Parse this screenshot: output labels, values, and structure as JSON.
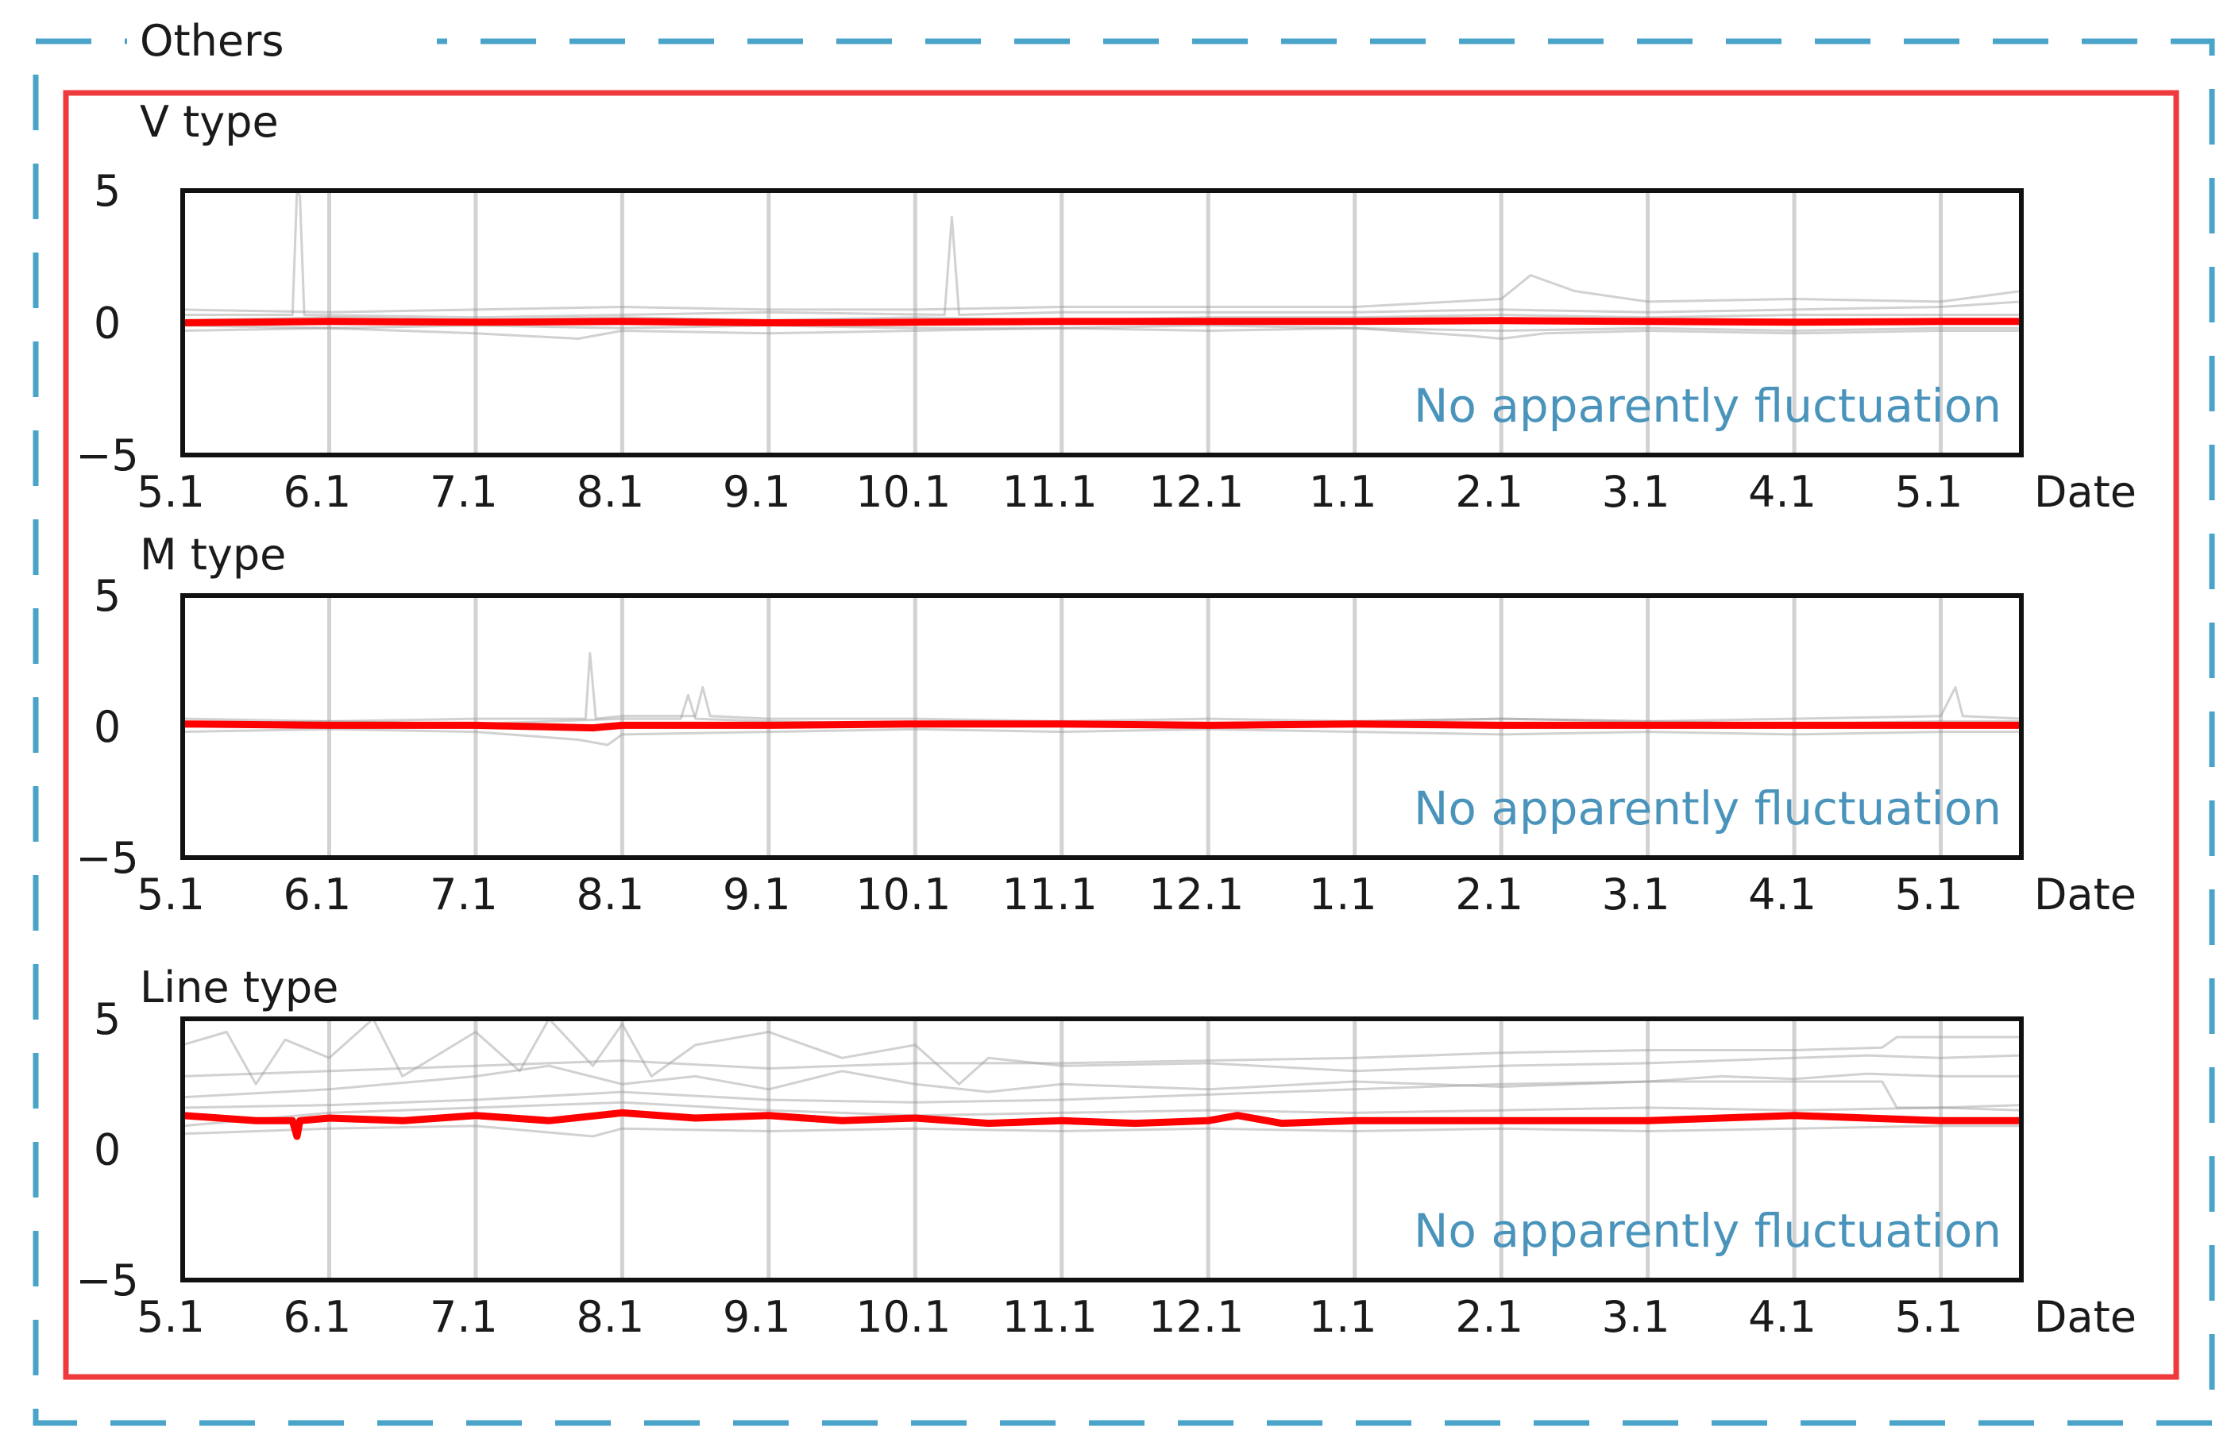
{
  "group_title": "Others",
  "colors": {
    "outer_frame": "#4aa3c8",
    "inner_frame": "#ee3a3c",
    "highlight_series": "#ff0000",
    "background_series": "#9a9a9a",
    "annotation": "#4a94bc",
    "grid": "#d2d2d2"
  },
  "chart_data": [
    {
      "type": "line",
      "title": "V type",
      "xlabel": "Date",
      "x_ticks": [
        "5.1",
        "6.1",
        "7.1",
        "8.1",
        "9.1",
        "10.1",
        "11.1",
        "12.1",
        "1.1",
        "2.1",
        "3.1",
        "4.1",
        "5.1"
      ],
      "x_range": [
        0,
        12.55
      ],
      "y_ticks": [
        5,
        0,
        -5
      ],
      "y_ticks_label": [
        "5",
        "0",
        "−5"
      ],
      "ylim": [
        -5,
        5
      ],
      "grid": "vertical",
      "annotation": "No apparently fluctuation",
      "highlight_series": {
        "x": [
          0,
          1,
          2,
          3,
          4,
          5,
          6,
          7,
          8,
          9,
          10,
          11,
          12,
          12.55
        ],
        "y": [
          0,
          0.05,
          0.02,
          0.05,
          0,
          0.02,
          0.05,
          0.05,
          0.05,
          0.08,
          0.05,
          0.02,
          0.05,
          0.05
        ]
      },
      "background_series": [
        {
          "x": [
            0,
            0.75,
            0.78,
            0.8,
            0.83,
            2,
            3,
            4,
            5.2,
            5.25,
            5.3,
            6,
            7,
            8,
            9,
            10,
            11,
            12,
            12.55
          ],
          "y": [
            0.3,
            0.3,
            5,
            4.8,
            0.3,
            0.2,
            0.3,
            0.4,
            0.3,
            4,
            0.3,
            0.4,
            0.4,
            0.4,
            0.5,
            0.4,
            0.5,
            0.6,
            0.8
          ]
        },
        {
          "x": [
            0,
            1,
            2,
            2.7,
            3,
            4,
            5,
            6,
            7,
            8,
            8.8,
            9,
            9.3,
            10,
            11,
            12,
            12.55
          ],
          "y": [
            -0.3,
            -0.2,
            -0.4,
            -0.6,
            -0.3,
            -0.4,
            -0.3,
            -0.2,
            -0.3,
            -0.2,
            -0.5,
            -0.6,
            -0.4,
            -0.3,
            -0.4,
            -0.3,
            -0.3
          ]
        },
        {
          "x": [
            0,
            1,
            2,
            3,
            4,
            5,
            6,
            7,
            8,
            9,
            9.2,
            9.5,
            10,
            11,
            12,
            12.55
          ],
          "y": [
            0.5,
            0.4,
            0.5,
            0.6,
            0.5,
            0.5,
            0.6,
            0.6,
            0.6,
            0.9,
            1.8,
            1.2,
            0.8,
            0.9,
            0.8,
            1.2
          ]
        },
        {
          "x": [
            0,
            1,
            2,
            3,
            4,
            5,
            6,
            7,
            8,
            9,
            10,
            11,
            12,
            12.55
          ],
          "y": [
            0.1,
            0.2,
            0.1,
            0.2,
            0.1,
            0.2,
            0.1,
            0.2,
            0.2,
            0.3,
            0.2,
            0.3,
            0.3,
            0.3
          ]
        },
        {
          "x": [
            0,
            1,
            2,
            3,
            4,
            5,
            6,
            7,
            8,
            9,
            10,
            11,
            12,
            12.55
          ],
          "y": [
            -0.1,
            -0.2,
            -0.1,
            -0.2,
            -0.1,
            -0.2,
            -0.2,
            -0.1,
            -0.2,
            -0.3,
            -0.2,
            -0.3,
            -0.2,
            -0.2
          ]
        }
      ]
    },
    {
      "type": "line",
      "title": "M type",
      "xlabel": "Date",
      "x_ticks": [
        "5.1",
        "6.1",
        "7.1",
        "8.1",
        "9.1",
        "10.1",
        "11.1",
        "12.1",
        "1.1",
        "2.1",
        "3.1",
        "4.1",
        "5.1"
      ],
      "x_range": [
        0,
        12.55
      ],
      "y_ticks": [
        5,
        0,
        -5
      ],
      "y_ticks_label": [
        "5",
        "0",
        "−5"
      ],
      "ylim": [
        -5,
        5
      ],
      "grid": "vertical",
      "annotation": "No apparently fluctuation",
      "highlight_series": {
        "x": [
          0,
          1,
          2,
          2.8,
          3,
          4,
          5,
          6,
          7,
          8,
          9,
          10,
          11,
          12,
          12.55
        ],
        "y": [
          0.1,
          0.05,
          0.05,
          -0.05,
          0.05,
          0.05,
          0.1,
          0.1,
          0.05,
          0.1,
          0.05,
          0.05,
          0.05,
          0.05,
          0.05
        ]
      },
      "background_series": [
        {
          "x": [
            0,
            1,
            2,
            2.75,
            2.78,
            2.82,
            3,
            3.5,
            3.55,
            3.6,
            4,
            5,
            6,
            7,
            8,
            9,
            10,
            11,
            12,
            12.1,
            12.15,
            12.55
          ],
          "y": [
            0.3,
            0.2,
            0.3,
            0.3,
            2.8,
            0.3,
            0.4,
            0.4,
            1.5,
            0.4,
            0.3,
            0.3,
            0.2,
            0.3,
            0.2,
            0.3,
            0.2,
            0.3,
            0.4,
            1.5,
            0.4,
            0.3
          ]
        },
        {
          "x": [
            0,
            1,
            2,
            2.7,
            2.9,
            3,
            4,
            5,
            6,
            7,
            8,
            9,
            10,
            11,
            12,
            12.55
          ],
          "y": [
            -0.2,
            -0.1,
            -0.2,
            -0.5,
            -0.7,
            -0.3,
            -0.2,
            -0.1,
            -0.2,
            -0.1,
            -0.2,
            -0.3,
            -0.2,
            -0.3,
            -0.2,
            -0.2
          ]
        },
        {
          "x": [
            0,
            1,
            2,
            3,
            3.4,
            3.45,
            3.5,
            4,
            5,
            6,
            7,
            8,
            9,
            10,
            11,
            12,
            12.55
          ],
          "y": [
            0.1,
            0.2,
            0.1,
            0.3,
            0.3,
            1.2,
            0.3,
            0.2,
            0.1,
            0.2,
            0.1,
            0.2,
            0.3,
            0.2,
            0.1,
            0.2,
            0.2
          ]
        }
      ]
    },
    {
      "type": "line",
      "title": "Line type",
      "xlabel": "Date",
      "x_ticks": [
        "5.1",
        "6.1",
        "7.1",
        "8.1",
        "9.1",
        "10.1",
        "11.1",
        "12.1",
        "1.1",
        "2.1",
        "3.1",
        "4.1",
        "5.1"
      ],
      "x_range": [
        0,
        12.55
      ],
      "y_ticks": [
        5,
        0,
        -5
      ],
      "y_ticks_label": [
        "5",
        "0",
        "−5"
      ],
      "ylim": [
        -5,
        5
      ],
      "grid": "vertical",
      "annotation": "No apparently fluctuation",
      "highlight_series": {
        "x": [
          0,
          0.5,
          0.75,
          0.78,
          0.8,
          1,
          1.5,
          2,
          2.5,
          3,
          3.5,
          4,
          4.5,
          5,
          5.5,
          6,
          6.5,
          7,
          7.2,
          7.5,
          8,
          9,
          10,
          10.5,
          11,
          11.5,
          12,
          12.55
        ],
        "y": [
          1.3,
          1.1,
          1.1,
          0.5,
          1.1,
          1.2,
          1.1,
          1.3,
          1.1,
          1.4,
          1.2,
          1.3,
          1.1,
          1.2,
          1.0,
          1.1,
          1.0,
          1.1,
          1.3,
          1.0,
          1.1,
          1.1,
          1.1,
          1.2,
          1.3,
          1.2,
          1.1,
          1.1
        ]
      },
      "background_series": [
        {
          "x": [
            0,
            0.3,
            0.5,
            0.7,
            1,
            1.3,
            1.5,
            2,
            2.3,
            2.5,
            2.8,
            3,
            3.2,
            3.5,
            4,
            4.5,
            5,
            5.3,
            5.5,
            6,
            7,
            8,
            9,
            10,
            11,
            11.5,
            12,
            12.55
          ],
          "y": [
            4,
            4.5,
            2.5,
            4.2,
            3.5,
            5,
            2.8,
            4.5,
            3,
            5,
            3.2,
            4.8,
            2.8,
            4,
            4.5,
            3.5,
            4,
            2.5,
            3.5,
            3.2,
            3.3,
            3,
            3.2,
            3.3,
            3.5,
            3.6,
            3.5,
            3.6
          ]
        },
        {
          "x": [
            0,
            1,
            2,
            2.5,
            3,
            3.5,
            4,
            4.5,
            5,
            5.5,
            6,
            7,
            8,
            9,
            10,
            10.5,
            11,
            11.5,
            12,
            12.55
          ],
          "y": [
            2,
            2.3,
            2.8,
            3.2,
            2.5,
            2.8,
            2.3,
            3,
            2.5,
            2.2,
            2.5,
            2.3,
            2.6,
            2.4,
            2.6,
            2.8,
            2.7,
            2.9,
            2.8,
            2.8
          ]
        },
        {
          "x": [
            0,
            1,
            2,
            3,
            4,
            5,
            6,
            7,
            8,
            8.5,
            9,
            10,
            10.5,
            11,
            11.6,
            11.7,
            12,
            12.55
          ],
          "y": [
            2.8,
            3,
            3.2,
            3.4,
            3.1,
            3.3,
            3.3,
            3.4,
            3.5,
            3.6,
            3.7,
            3.8,
            3.8,
            3.8,
            3.9,
            4.3,
            4.3,
            4.3
          ]
        },
        {
          "x": [
            0,
            1,
            2,
            3,
            4,
            5,
            6,
            7,
            8,
            9,
            10,
            11,
            11.6,
            11.7,
            12,
            12.55
          ],
          "y": [
            1.6,
            1.7,
            1.9,
            2.2,
            1.9,
            1.8,
            1.9,
            2.1,
            2.3,
            2.5,
            2.6,
            2.6,
            2.6,
            1.6,
            1.6,
            1.5
          ]
        },
        {
          "x": [
            0,
            1,
            2,
            2.8,
            3,
            4,
            5,
            6,
            7,
            8,
            9,
            10,
            11,
            12,
            12.55
          ],
          "y": [
            0.6,
            0.8,
            0.9,
            0.5,
            0.8,
            0.7,
            0.8,
            0.7,
            0.8,
            0.7,
            0.8,
            0.7,
            0.8,
            0.9,
            0.9
          ]
        },
        {
          "x": [
            0,
            1,
            2,
            3,
            4,
            5,
            6,
            7,
            8,
            9,
            10,
            11,
            12,
            12.55
          ],
          "y": [
            0.9,
            1.4,
            1.6,
            1.8,
            1.5,
            1.3,
            1.4,
            1.5,
            1.4,
            1.5,
            1.6,
            1.5,
            1.6,
            1.7
          ]
        }
      ]
    }
  ]
}
